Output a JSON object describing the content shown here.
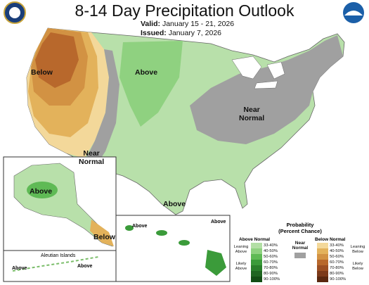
{
  "header": {
    "title": "8-14 Day Precipitation Outlook",
    "valid_label": "Valid:",
    "valid_value": "January 15 - 21, 2026",
    "issued_label": "Issued:",
    "issued_value": "January 7, 2026"
  },
  "logos": {
    "left": "commerce-seal-icon",
    "right": "noaa-logo-icon",
    "right_text": "NOAA"
  },
  "map_labels": {
    "west": "Below",
    "north": "Above",
    "east_line1": "Near",
    "east_line2": "Normal",
    "sw_line1": "Near",
    "sw_line2": "Normal",
    "south": "Above",
    "alaska": "Above",
    "alaska_se": "Below",
    "aleutian_title": "Aleutian Islands",
    "aleutian_above_1": "Above",
    "aleutian_above_2": "Above",
    "hawaii_above_1": "Above",
    "hawaii_above_2": "Above"
  },
  "legend": {
    "title_line1": "Probability",
    "title_line2": "(Percent Chance)",
    "above_title": "Above Normal",
    "below_title": "Below Normal",
    "near_line1": "Near",
    "near_line2": "Normal",
    "leaning_above_1": "Leaning",
    "leaning_above_2": "Above",
    "likely_above_1": "Likely",
    "likely_above_2": "Above",
    "leaning_below_1": "Leaning",
    "leaning_below_2": "Below",
    "likely_below_1": "Likely",
    "likely_below_2": "Below",
    "bins": [
      "33-40%",
      "40-50%",
      "50-60%",
      "60-70%",
      "70-80%",
      "80-90%",
      "90-100%"
    ],
    "above_colors": [
      "#b3dfa5",
      "#8fd180",
      "#5fba55",
      "#3b9b3a",
      "#2a7f2b",
      "#1f6520",
      "#134d14"
    ],
    "below_colors": [
      "#f3d89a",
      "#e3b25b",
      "#d29243",
      "#b8682c",
      "#9c4f23",
      "#7c3a1a",
      "#5a2810"
    ],
    "near_color": "#a0a0a0"
  }
}
